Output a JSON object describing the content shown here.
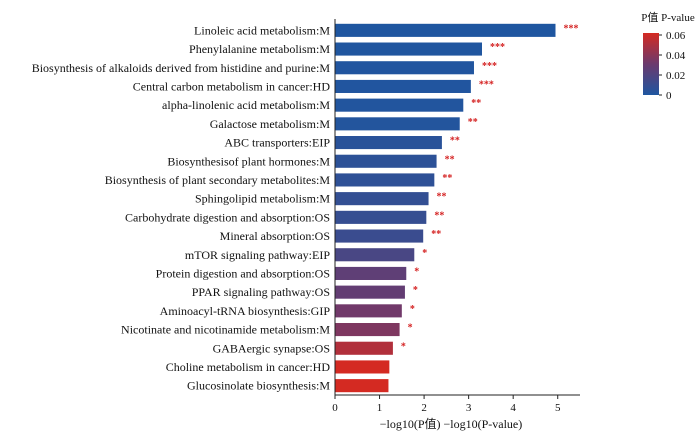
{
  "chart_data": {
    "type": "bar",
    "orientation": "horizontal",
    "categories": [
      "Linoleic acid metabolism:M",
      "Phenylalanine metabolism:M",
      "Biosynthesis of alkaloids derived from histidine and purine:M",
      "Central carbon metabolism in cancer:HD",
      "alpha-linolenic acid metabolism:M",
      "Galactose metabolism:M",
      "ABC transporters:EIP",
      "Biosynthesisof plant hormones:M",
      "Biosynthesis of plant secondary metabolites:M",
      "Sphingolipid metabolism:M",
      "Carbohydrate digestion and absorption:OS",
      "Mineral absorption:OS",
      "mTOR signaling pathway:EIP",
      "Protein digestion and absorption:OS",
      "PPAR signaling pathway:OS",
      "Aminoacyl-tRNA biosynthesis:GIP",
      "Nicotinate and nicotinamide metabolism:M",
      "GABAergic synapse:OS",
      "Choline metabolism in cancer:HD",
      "Glucosinolate biosynthesis:M"
    ],
    "values": [
      4.95,
      3.3,
      3.12,
      3.05,
      2.88,
      2.8,
      2.4,
      2.28,
      2.23,
      2.1,
      2.05,
      1.98,
      1.78,
      1.6,
      1.57,
      1.5,
      1.45,
      1.3,
      1.22,
      1.2
    ],
    "p_values": [
      1.12e-05,
      0.0005,
      0.00076,
      0.00089,
      0.0013,
      0.0016,
      0.004,
      0.0052,
      0.0059,
      0.0079,
      0.0089,
      0.0105,
      0.0166,
      0.0251,
      0.0269,
      0.0316,
      0.0355,
      0.0501,
      0.0603,
      0.0631
    ],
    "significance": [
      "***",
      "***",
      "***",
      "***",
      "**",
      "**",
      "**",
      "**",
      "**",
      "**",
      "**",
      "**",
      "*",
      "*",
      "*",
      "*",
      "*",
      "*",
      "",
      ""
    ],
    "xlabel": "−log10(P值) −log10(P-value)",
    "xlim": [
      0,
      5.5
    ],
    "xticks": [
      "0",
      "1",
      "2",
      "3",
      "4",
      "5"
    ],
    "legend": {
      "title": "P值 P-value",
      "ticks": [
        "0.06",
        "0.04",
        "0.02",
        "0"
      ],
      "range": [
        0,
        0.06
      ],
      "placement": "top-right",
      "colors": {
        "low": "#1f56a0",
        "mid": "#6b3a6e",
        "high": "#d42a22"
      }
    }
  }
}
